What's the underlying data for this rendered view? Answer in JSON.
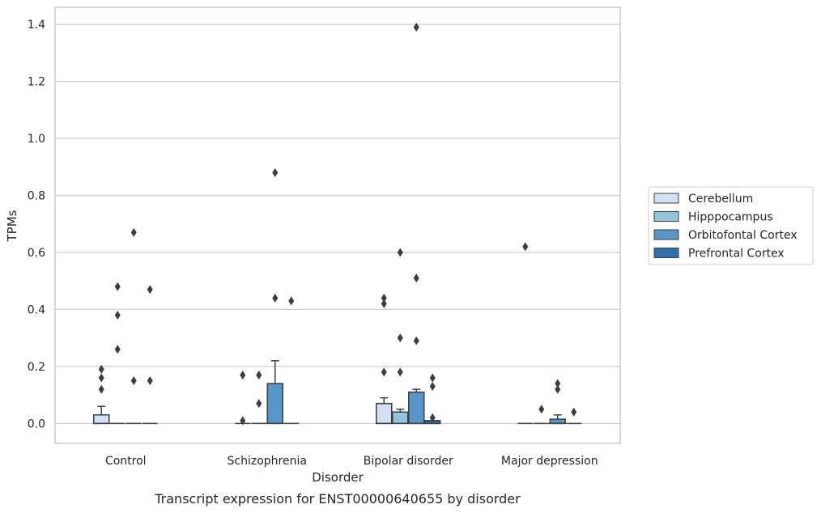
{
  "chart_data": {
    "type": "box",
    "caption": "Transcript expression for ENST00000640655 by disorder",
    "xlabel": "Disorder",
    "ylabel": "TPMs",
    "ylim": [
      -0.07,
      1.46
    ],
    "yticks": [
      0.0,
      0.2,
      0.4,
      0.6,
      0.8,
      1.0,
      1.2,
      1.4
    ],
    "grid": true,
    "legend_position": "right",
    "categories": [
      "Control",
      "Schizophrenia",
      "Bipolar disorder",
      "Major depression"
    ],
    "series": [
      {
        "name": "Cerebellum",
        "color": "#cfe1f2",
        "boxes": [
          {
            "q1": 0.0,
            "median": 0.0,
            "q3": 0.03,
            "whisker_low": 0.0,
            "whisker_high": 0.06,
            "outliers": [
              0.12,
              0.16,
              0.19
            ]
          },
          {
            "q1": 0.0,
            "median": 0.0,
            "q3": 0.0,
            "whisker_low": 0.0,
            "whisker_high": 0.0,
            "outliers": [
              0.01,
              0.17
            ]
          },
          {
            "q1": 0.0,
            "median": 0.0,
            "q3": 0.07,
            "whisker_low": 0.0,
            "whisker_high": 0.09,
            "outliers": [
              0.18,
              0.42,
              0.44
            ]
          },
          {
            "q1": 0.0,
            "median": 0.0,
            "q3": 0.0,
            "whisker_low": 0.0,
            "whisker_high": 0.0,
            "outliers": [
              0.62
            ]
          }
        ]
      },
      {
        "name": "Hipppocampus",
        "color": "#93c4de",
        "boxes": [
          {
            "q1": 0.0,
            "median": 0.0,
            "q3": 0.0,
            "whisker_low": 0.0,
            "whisker_high": 0.0,
            "outliers": [
              0.26,
              0.38,
              0.48
            ]
          },
          {
            "q1": 0.0,
            "median": 0.0,
            "q3": 0.0,
            "whisker_low": 0.0,
            "whisker_high": 0.0,
            "outliers": [
              0.07,
              0.17
            ]
          },
          {
            "q1": 0.0,
            "median": 0.0,
            "q3": 0.04,
            "whisker_low": 0.0,
            "whisker_high": 0.05,
            "outliers": [
              0.18,
              0.3,
              0.6
            ]
          },
          {
            "q1": 0.0,
            "median": 0.0,
            "q3": 0.0,
            "whisker_low": 0.0,
            "whisker_high": 0.0,
            "outliers": [
              0.05
            ]
          }
        ]
      },
      {
        "name": "Orbitofontal Cortex",
        "color": "#5597c9",
        "boxes": [
          {
            "q1": 0.0,
            "median": 0.0,
            "q3": 0.0,
            "whisker_low": 0.0,
            "whisker_high": 0.0,
            "outliers": [
              0.15,
              0.67
            ]
          },
          {
            "q1": 0.0,
            "median": 0.0,
            "q3": 0.14,
            "whisker_low": 0.0,
            "whisker_high": 0.22,
            "outliers": [
              0.44,
              0.88
            ]
          },
          {
            "q1": 0.0,
            "median": 0.0,
            "q3": 0.11,
            "whisker_low": 0.0,
            "whisker_high": 0.12,
            "outliers": [
              0.29,
              0.51,
              1.39
            ]
          },
          {
            "q1": 0.0,
            "median": 0.0,
            "q3": 0.015,
            "whisker_low": 0.0,
            "whisker_high": 0.03,
            "outliers": [
              0.12,
              0.14
            ]
          }
        ]
      },
      {
        "name": "Prefrontal Cortex",
        "color": "#2f6fae",
        "boxes": [
          {
            "q1": 0.0,
            "median": 0.0,
            "q3": 0.0,
            "whisker_low": 0.0,
            "whisker_high": 0.0,
            "outliers": [
              0.15,
              0.47
            ]
          },
          {
            "q1": 0.0,
            "median": 0.0,
            "q3": 0.0,
            "whisker_low": 0.0,
            "whisker_high": 0.0,
            "outliers": [
              0.43
            ]
          },
          {
            "q1": 0.0,
            "median": 0.0,
            "q3": 0.01,
            "whisker_low": 0.0,
            "whisker_high": 0.01,
            "outliers": [
              0.02,
              0.13,
              0.16
            ]
          },
          {
            "q1": 0.0,
            "median": 0.0,
            "q3": 0.0,
            "whisker_low": 0.0,
            "whisker_high": 0.0,
            "outliers": [
              0.04
            ]
          }
        ]
      }
    ]
  }
}
